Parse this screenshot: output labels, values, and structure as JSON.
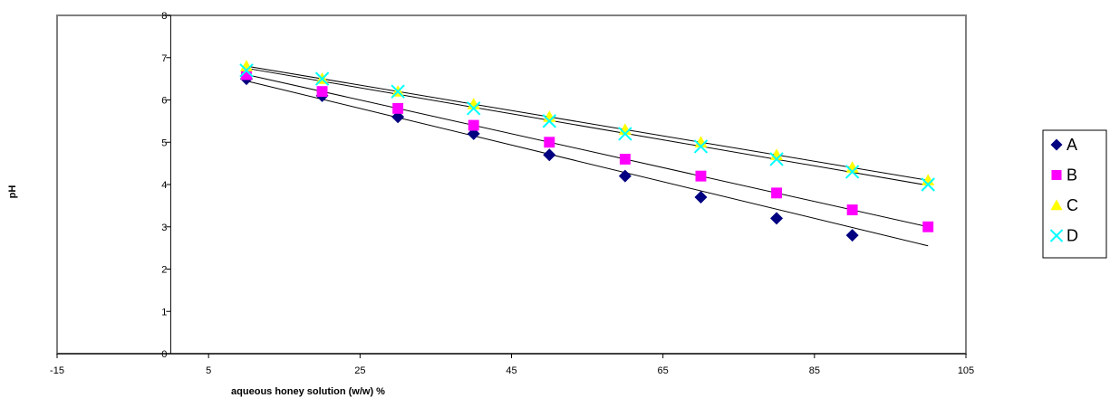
{
  "chart_data": {
    "type": "scatter",
    "title": "",
    "xlabel": "aqueous honey solution  (w/w) %",
    "ylabel": "pH",
    "xlim": [
      -15,
      105
    ],
    "ylim": [
      0,
      8
    ],
    "xticks": [
      -15,
      5,
      25,
      45,
      65,
      85,
      105
    ],
    "yticks": [
      0,
      1,
      2,
      3,
      4,
      5,
      6,
      7,
      8
    ],
    "grid": false,
    "legend_position": "right",
    "x": [
      10,
      20,
      30,
      40,
      50,
      60,
      70,
      80,
      90,
      100
    ],
    "series": [
      {
        "name": "A",
        "marker": "diamond",
        "color": "#000080",
        "values": [
          6.5,
          6.1,
          5.6,
          5.2,
          4.7,
          4.2,
          3.7,
          3.2,
          2.8,
          null
        ],
        "trendline": [
          [
            10,
            6.45
          ],
          [
            100,
            2.55
          ]
        ]
      },
      {
        "name": "B",
        "marker": "square",
        "color": "#FF00FF",
        "values": [
          6.6,
          6.2,
          5.8,
          5.4,
          5.0,
          4.6,
          4.2,
          3.8,
          3.4,
          3.0
        ],
        "trendline": [
          [
            10,
            6.6
          ],
          [
            100,
            3.0
          ]
        ]
      },
      {
        "name": "C",
        "marker": "triangle",
        "color": "#FFFF00",
        "values": [
          6.8,
          6.5,
          6.2,
          5.9,
          5.6,
          5.3,
          5.0,
          4.7,
          4.4,
          4.1
        ],
        "trendline": [
          [
            10,
            6.8
          ],
          [
            100,
            4.1
          ]
        ]
      },
      {
        "name": "D",
        "marker": "x",
        "color": "#00FFFF",
        "values": [
          6.7,
          6.5,
          6.2,
          5.8,
          5.5,
          5.2,
          4.9,
          4.6,
          4.3,
          4.0
        ],
        "trendline": [
          [
            10,
            6.75
          ],
          [
            100,
            3.98
          ]
        ]
      }
    ]
  }
}
